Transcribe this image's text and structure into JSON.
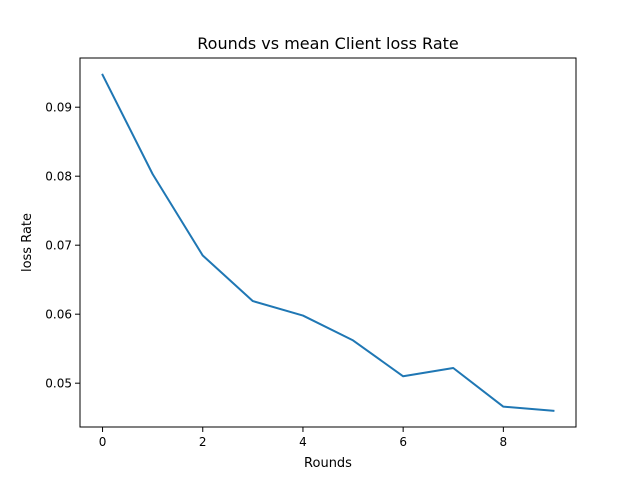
{
  "chart_data": {
    "type": "line",
    "title": "Rounds vs mean Client loss Rate",
    "xlabel": "Rounds",
    "ylabel": "loss Rate",
    "x": [
      0,
      1,
      2,
      3,
      4,
      5,
      6,
      7,
      8,
      9
    ],
    "series": [
      {
        "values": [
          0.0947,
          0.0803,
          0.0685,
          0.0619,
          0.0598,
          0.0562,
          0.051,
          0.0522,
          0.0466,
          0.046
        ],
        "color": "#1f77b4"
      }
    ],
    "xlim": [
      -0.45,
      9.45
    ],
    "ylim": [
      0.04365,
      0.09713
    ],
    "xticks": [
      0,
      2,
      4,
      6,
      8
    ],
    "yticks": [
      0.05,
      0.06,
      0.07,
      0.08,
      0.09
    ],
    "xtick_labels": [
      "0",
      "2",
      "4",
      "6",
      "8"
    ],
    "ytick_labels": [
      "0.05",
      "0.06",
      "0.07",
      "0.08",
      "0.09"
    ],
    "grid": false,
    "legend": "none"
  }
}
